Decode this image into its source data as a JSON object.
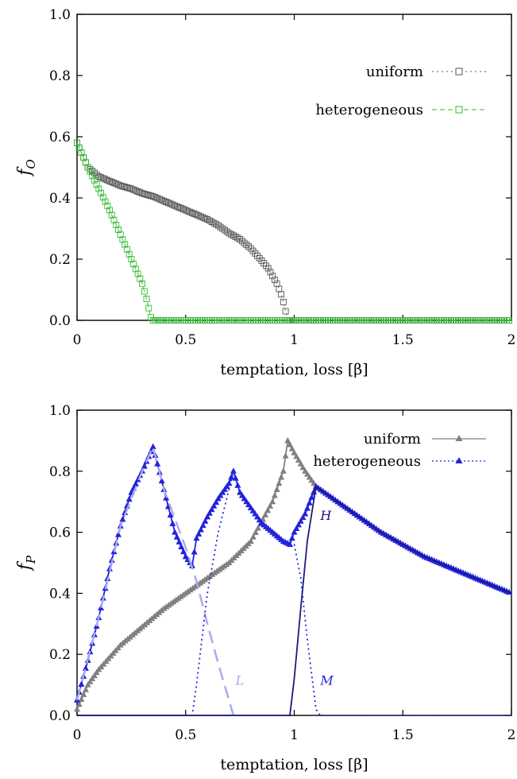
{
  "chart_data": [
    {
      "type": "scatter",
      "xlabel": "temptation, loss [β]",
      "ylabel": "fO",
      "xlim": [
        0,
        2
      ],
      "ylim": [
        0,
        1
      ],
      "xticks": [
        "0",
        "0.5",
        "1",
        "1.5",
        "2"
      ],
      "yticks": [
        "0.0",
        "0.2",
        "0.4",
        "0.6",
        "0.8",
        "1.0"
      ],
      "grid": false,
      "legend_position": "top-right",
      "series": [
        {
          "name": "uniform",
          "color": "#555555",
          "marker": "square-open",
          "x": [
            0,
            0.05,
            0.1,
            0.15,
            0.2,
            0.25,
            0.3,
            0.35,
            0.4,
            0.45,
            0.5,
            0.55,
            0.6,
            0.65,
            0.7,
            0.75,
            0.8,
            0.85,
            0.88,
            0.9,
            0.92,
            0.94,
            0.95,
            0.96,
            0.97,
            0.98,
            1.0,
            1.5,
            2.0
          ],
          "y": [
            0.58,
            0.5,
            0.47,
            0.455,
            0.44,
            0.43,
            0.415,
            0.405,
            0.39,
            0.375,
            0.36,
            0.345,
            0.33,
            0.31,
            0.285,
            0.265,
            0.235,
            0.195,
            0.17,
            0.145,
            0.12,
            0.085,
            0.06,
            0.03,
            0.0,
            0.0,
            0.0,
            0.0,
            0.0
          ]
        },
        {
          "name": "heterogeneous",
          "color": "#33bb33",
          "marker": "square-open",
          "x": [
            0,
            0.05,
            0.1,
            0.15,
            0.2,
            0.25,
            0.3,
            0.32,
            0.34,
            0.35,
            0.4,
            0.5,
            1.0,
            1.5,
            2.0
          ],
          "y": [
            0.58,
            0.5,
            0.43,
            0.36,
            0.28,
            0.2,
            0.12,
            0.07,
            0.01,
            0.0,
            0.0,
            0.0,
            0.0,
            0.0,
            0.0
          ]
        }
      ]
    },
    {
      "type": "line",
      "xlabel": "temptation, loss [β]",
      "ylabel": "fP",
      "xlim": [
        0,
        2
      ],
      "ylim": [
        0,
        1
      ],
      "xticks": [
        "0",
        "0.5",
        "1",
        "1.5",
        "2"
      ],
      "yticks": [
        "0.0",
        "0.2",
        "0.4",
        "0.6",
        "0.8",
        "1.0"
      ],
      "grid": false,
      "legend_position": "top-right",
      "series": [
        {
          "name": "uniform",
          "color": "#808080",
          "marker": "triangle",
          "x": [
            0,
            0.05,
            0.1,
            0.2,
            0.3,
            0.4,
            0.5,
            0.6,
            0.7,
            0.8,
            0.9,
            0.95,
            0.97,
            1.0,
            1.05,
            1.1
          ],
          "y": [
            0.02,
            0.1,
            0.15,
            0.23,
            0.29,
            0.35,
            0.4,
            0.45,
            0.5,
            0.57,
            0.7,
            0.8,
            0.9,
            0.86,
            0.8,
            0.75
          ]
        },
        {
          "name": "heterogeneous",
          "color": "#2222dd",
          "marker": "triangle",
          "x": [
            0,
            0.05,
            0.1,
            0.15,
            0.2,
            0.25,
            0.3,
            0.35,
            0.4,
            0.45,
            0.5,
            0.53,
            0.55,
            0.6,
            0.65,
            0.7,
            0.72,
            0.75,
            0.8,
            0.85,
            0.9,
            0.95,
            0.98,
            1.0,
            1.05,
            1.1,
            1.2,
            1.3,
            1.4,
            1.5,
            1.6,
            1.7,
            1.8,
            1.9,
            2.0
          ],
          "y": [
            0.05,
            0.18,
            0.32,
            0.48,
            0.62,
            0.73,
            0.8,
            0.88,
            0.74,
            0.6,
            0.52,
            0.49,
            0.58,
            0.65,
            0.71,
            0.76,
            0.8,
            0.73,
            0.68,
            0.63,
            0.6,
            0.57,
            0.56,
            0.6,
            0.66,
            0.75,
            0.7,
            0.65,
            0.6,
            0.56,
            0.52,
            0.49,
            0.46,
            0.43,
            0.4
          ]
        },
        {
          "name": "",
          "color": "#aaaaee",
          "style": "dashed",
          "x": [
            0,
            0.1,
            0.2,
            0.3,
            0.35,
            0.4,
            0.5,
            0.55,
            0.6,
            0.65,
            0.7,
            0.72
          ],
          "y": [
            0.05,
            0.32,
            0.62,
            0.8,
            0.88,
            0.74,
            0.55,
            0.44,
            0.3,
            0.17,
            0.05,
            0.0
          ]
        },
        {
          "name": "",
          "color": "#2222dd",
          "style": "dotted",
          "x": [
            0,
            0.53,
            0.55,
            0.6,
            0.65,
            0.7,
            0.72,
            0.75,
            0.8,
            0.85,
            0.9,
            0.95,
            1.0,
            1.03,
            1.06,
            1.1,
            1.12,
            2.0
          ],
          "y": [
            0.0,
            0.0,
            0.1,
            0.4,
            0.6,
            0.74,
            0.8,
            0.73,
            0.68,
            0.63,
            0.6,
            0.57,
            0.56,
            0.45,
            0.25,
            0.02,
            0.0,
            0.0
          ]
        },
        {
          "name": "",
          "color": "#1a1a80",
          "style": "solid",
          "x": [
            0,
            0.98,
            1.0,
            1.03,
            1.06,
            1.1,
            1.2,
            1.3,
            1.4,
            1.5,
            1.6,
            1.7,
            1.8,
            1.9,
            2.0
          ],
          "y": [
            0.0,
            0.0,
            0.12,
            0.35,
            0.57,
            0.75,
            0.7,
            0.65,
            0.6,
            0.56,
            0.52,
            0.49,
            0.46,
            0.43,
            0.4
          ]
        }
      ],
      "annotations": [
        {
          "text": "H",
          "x": 1.12,
          "y": 0.64,
          "color": "#1a1a80"
        },
        {
          "text": "M",
          "x": 1.12,
          "y": 0.1,
          "color": "#2222dd"
        },
        {
          "text": "L",
          "x": 0.73,
          "y": 0.1,
          "color": "#aaaaee"
        }
      ]
    }
  ]
}
